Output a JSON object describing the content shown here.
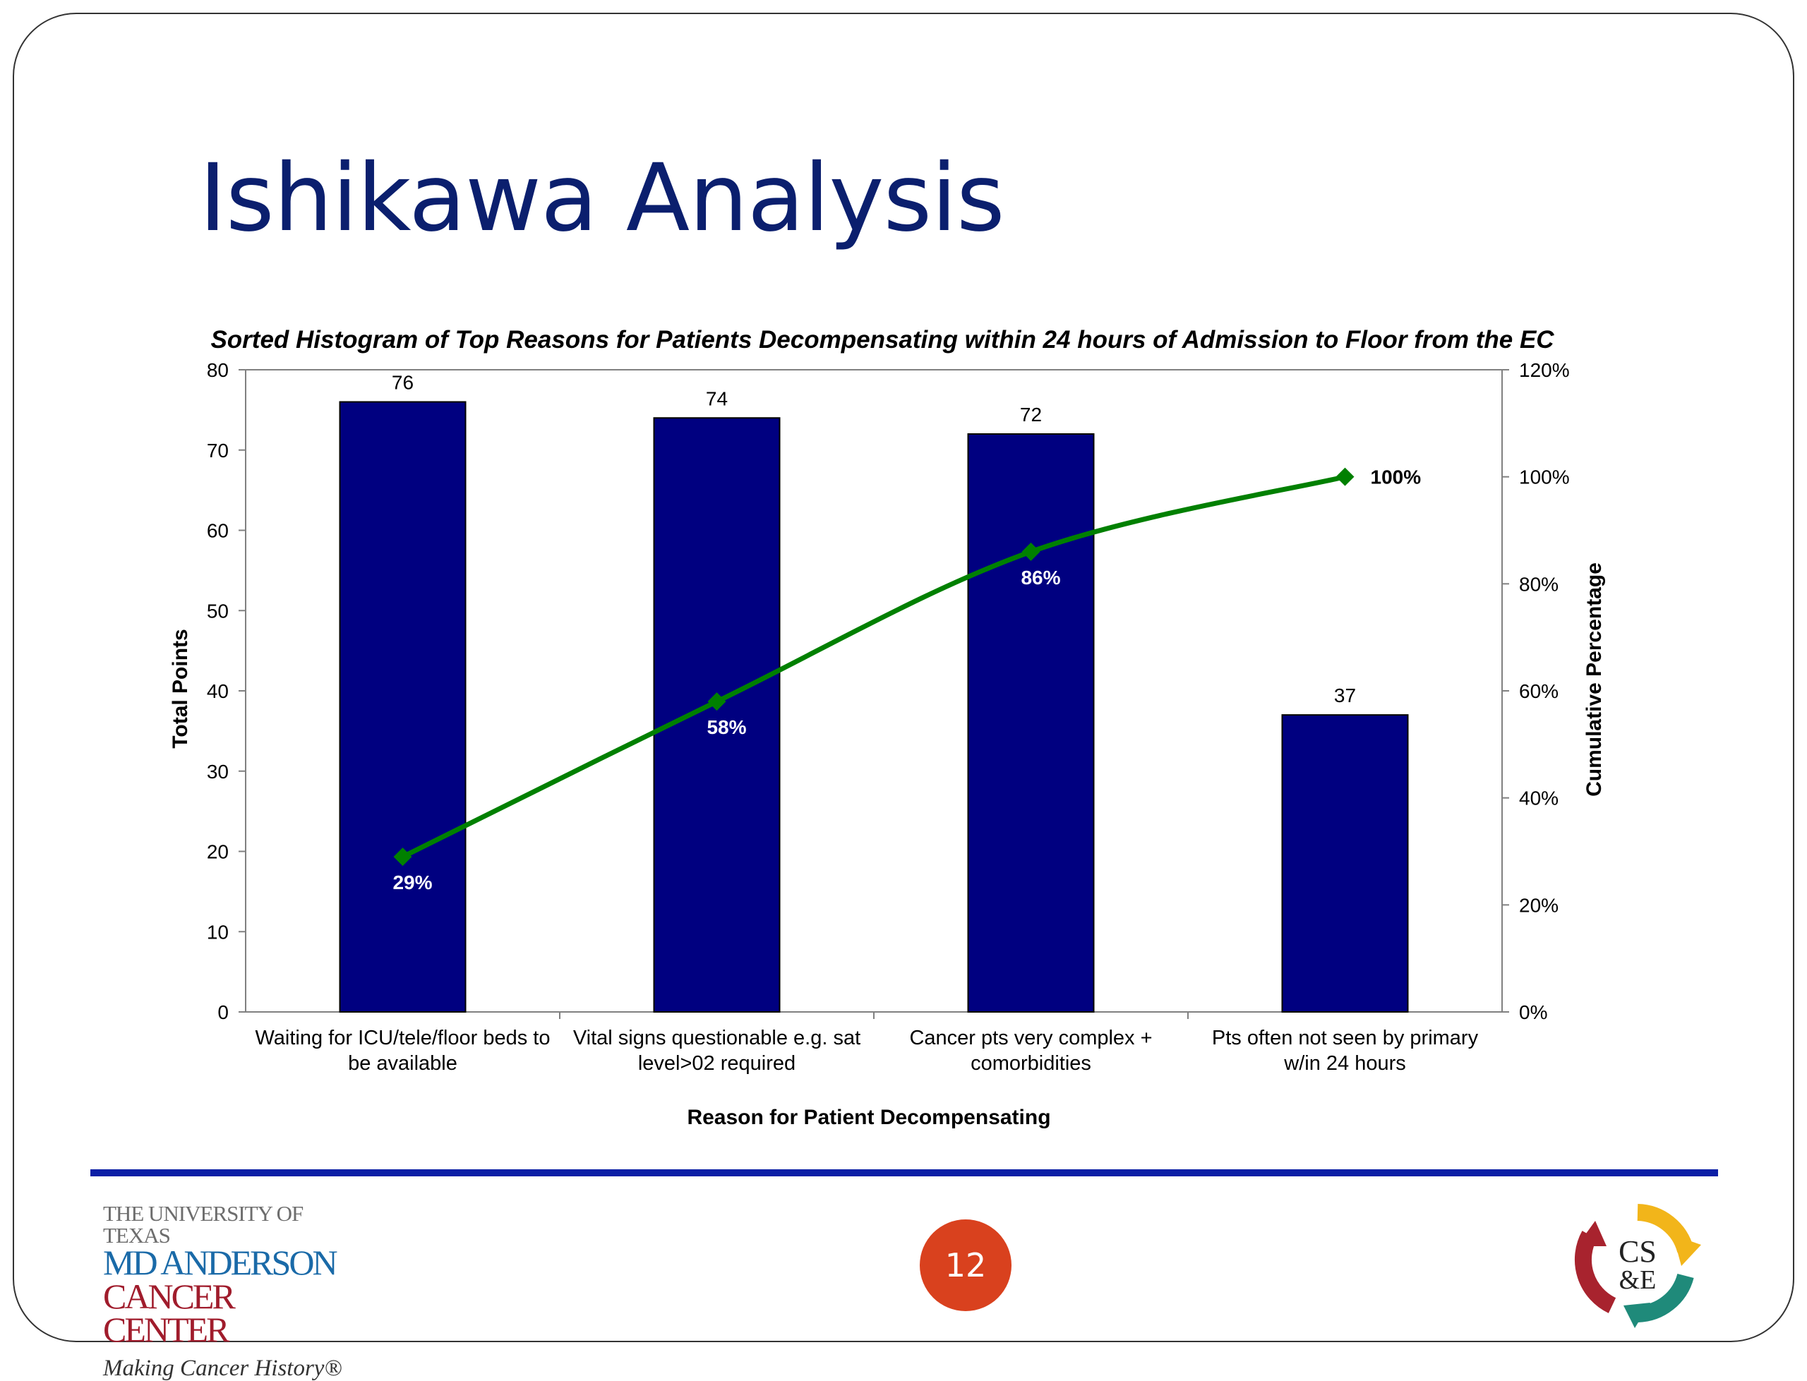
{
  "slide": {
    "title": "Ishikawa Analysis",
    "page_number": "12"
  },
  "footer": {
    "logo_left": {
      "line1": "THE UNIVERSITY OF TEXAS",
      "line2": "MD ANDERSON",
      "line3": "CANCER CENTER",
      "line4": "Making Cancer History®"
    },
    "logo_right": {
      "text_top": "CS",
      "text_bottom": "&E"
    }
  },
  "colors": {
    "title": "#0b1f6e",
    "bar": "#000080",
    "line": "#008000",
    "rule": "#0b1fa6",
    "badge": "#d9411e"
  },
  "chart_data": {
    "type": "bar",
    "title": "Sorted Histogram of Top Reasons for Patients Decompensating within 24 hours of Admission to Floor from the EC",
    "xlabel": "Reason for Patient Decompensating",
    "ylabel": "Total Points",
    "y2label": "Cumulative Percentage",
    "categories": [
      [
        "Waiting for ICU/tele/floor beds to",
        "be available"
      ],
      [
        "Vital signs questionable e.g. sat",
        "level>02 required"
      ],
      [
        "Cancer pts very complex +",
        "comorbidities"
      ],
      [
        "Pts often not seen by primary",
        "w/in 24 hours"
      ]
    ],
    "values": [
      76,
      74,
      72,
      37
    ],
    "value_labels": [
      "76",
      "74",
      "72",
      "37"
    ],
    "ylim": [
      0,
      80
    ],
    "yticks": [
      "0",
      "10",
      "20",
      "30",
      "40",
      "50",
      "60",
      "70",
      "80"
    ],
    "y2lim": [
      0,
      120
    ],
    "y2ticks": [
      "0%",
      "20%",
      "40%",
      "60%",
      "80%",
      "100%",
      "120%"
    ],
    "cumulative": {
      "type": "line",
      "values": [
        29,
        58,
        86,
        100
      ],
      "labels": [
        "29%",
        "58%",
        "86%",
        "100%"
      ]
    },
    "grid": false,
    "legend": "none"
  }
}
